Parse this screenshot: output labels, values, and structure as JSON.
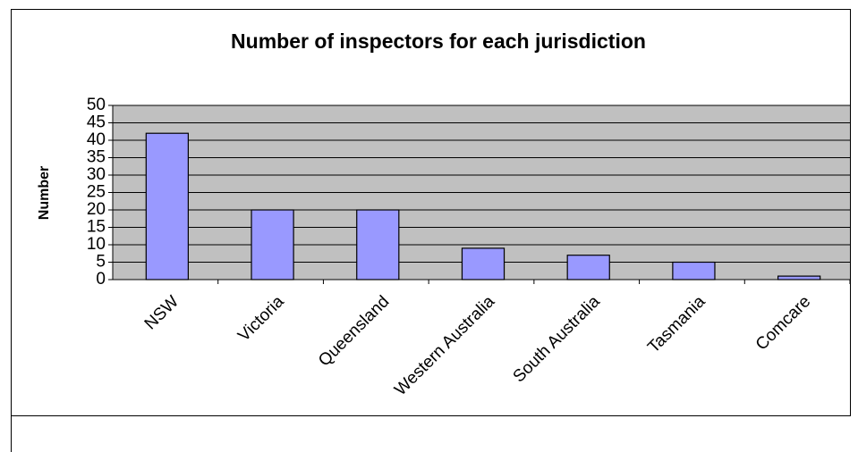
{
  "chart_data": {
    "type": "bar",
    "title": "Number of inspectors for each jurisdiction",
    "y_label": "Number",
    "categories": [
      "NSW",
      "Victoria",
      "Queensland",
      "Western Australia",
      "South Australia",
      "Tasmania",
      "Comcare"
    ],
    "values": [
      42,
      20,
      20,
      9,
      7,
      5,
      1
    ],
    "color": "#9999ff",
    "ylim": [
      0,
      50
    ],
    "yticks": [
      0,
      5,
      10,
      15,
      20,
      25,
      30,
      35,
      40,
      45,
      50
    ],
    "grid": true
  }
}
